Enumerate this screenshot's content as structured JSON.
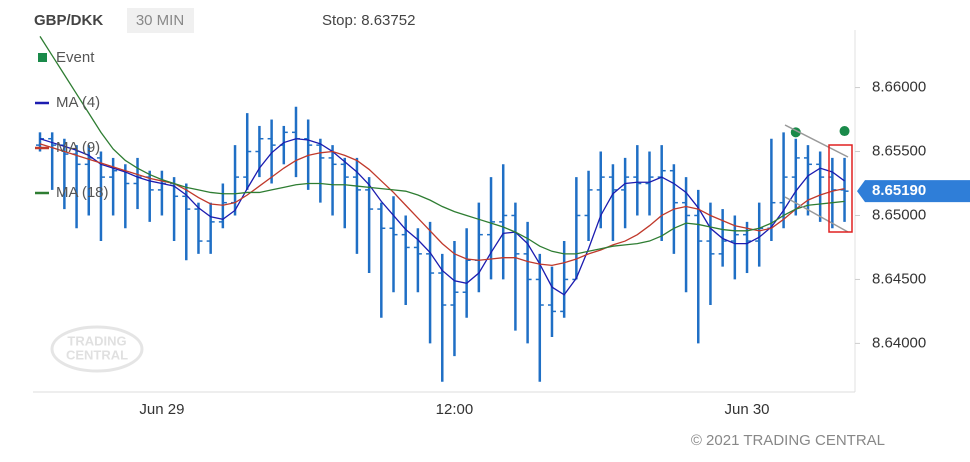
{
  "chart_data": {
    "type": "ohlc",
    "title": "GBP/DKK",
    "interval": "30 MIN",
    "stop_label": "Stop: 8.63752",
    "copyright": "© 2021 TRADING CENTRAL",
    "watermark": [
      "TRADING",
      "CENTRAL"
    ],
    "bar_color": "#1f6fc5",
    "categories": [
      null,
      null,
      null,
      null,
      null,
      null,
      null,
      null,
      null,
      null,
      "Jun 29",
      null,
      null,
      null,
      null,
      null,
      null,
      null,
      null,
      null,
      null,
      null,
      null,
      null,
      null,
      null,
      null,
      null,
      null,
      null,
      null,
      null,
      null,
      null,
      "12:00",
      null,
      null,
      null,
      null,
      null,
      null,
      null,
      null,
      null,
      null,
      null,
      null,
      null,
      null,
      null,
      null,
      null,
      null,
      null,
      null,
      null,
      null,
      null,
      "Jun 30",
      null,
      null,
      null,
      null,
      null,
      null,
      null,
      null
    ],
    "open": [
      8.6555,
      8.656,
      8.6555,
      8.6548,
      8.654,
      8.6545,
      8.653,
      8.6535,
      8.6525,
      8.653,
      8.652,
      8.6525,
      8.6515,
      8.6505,
      8.648,
      8.6495,
      8.651,
      8.653,
      8.655,
      8.656,
      8.6555,
      8.6565,
      8.656,
      8.6555,
      8.6545,
      8.654,
      8.653,
      8.652,
      8.6505,
      8.649,
      8.6485,
      8.6475,
      8.647,
      8.6455,
      8.643,
      8.644,
      8.6465,
      8.6485,
      8.6495,
      8.65,
      8.647,
      8.645,
      8.643,
      8.6425,
      8.645,
      8.65,
      8.652,
      8.653,
      8.652,
      8.653,
      8.6525,
      8.653,
      8.6535,
      8.651,
      8.65,
      8.648,
      8.647,
      8.648,
      8.6485,
      8.648,
      8.649,
      8.651,
      8.653,
      8.6545,
      8.654,
      8.653,
      8.652
    ],
    "high": [
      8.6565,
      8.6565,
      8.656,
      8.6555,
      8.6555,
      8.655,
      8.6545,
      8.654,
      8.6545,
      8.6535,
      8.6535,
      8.653,
      8.6525,
      8.651,
      8.651,
      8.6525,
      8.6555,
      8.658,
      8.657,
      8.6575,
      8.657,
      8.6585,
      8.6575,
      8.656,
      8.6555,
      8.6545,
      8.6545,
      8.653,
      8.651,
      8.6515,
      8.65,
      8.649,
      8.6495,
      8.647,
      8.648,
      8.649,
      8.651,
      8.653,
      8.654,
      8.651,
      8.6495,
      8.647,
      8.646,
      8.648,
      8.653,
      8.6535,
      8.655,
      8.654,
      8.6545,
      8.6555,
      8.655,
      8.6555,
      8.654,
      8.653,
      8.652,
      8.651,
      8.6505,
      8.65,
      8.6495,
      8.651,
      8.656,
      8.6565,
      8.656,
      8.6555,
      8.655,
      8.6545,
      8.6545
    ],
    "low": [
      8.655,
      8.652,
      8.6505,
      8.649,
      8.65,
      8.648,
      8.65,
      8.649,
      8.6505,
      8.6495,
      8.65,
      8.648,
      8.6465,
      8.647,
      8.647,
      8.649,
      8.65,
      8.652,
      8.653,
      8.6525,
      8.654,
      8.653,
      8.652,
      8.651,
      8.65,
      8.649,
      8.647,
      8.6455,
      8.642,
      8.644,
      8.643,
      8.644,
      8.64,
      8.637,
      8.639,
      8.642,
      8.644,
      8.645,
      8.645,
      8.641,
      8.64,
      8.637,
      8.6405,
      8.642,
      8.645,
      8.648,
      8.649,
      8.648,
      8.649,
      8.65,
      8.65,
      8.648,
      8.647,
      8.644,
      8.64,
      8.643,
      8.646,
      8.645,
      8.6455,
      8.646,
      8.648,
      8.649,
      8.65,
      8.65,
      8.6495,
      8.649,
      8.6495
    ],
    "close": [
      8.656,
      8.6555,
      8.6548,
      8.654,
      8.6545,
      8.653,
      8.6535,
      8.6525,
      8.653,
      8.652,
      8.6525,
      8.6515,
      8.6505,
      8.648,
      8.6495,
      8.651,
      8.653,
      8.655,
      8.656,
      8.6555,
      8.6565,
      8.656,
      8.6555,
      8.6545,
      8.654,
      8.653,
      8.652,
      8.6505,
      8.649,
      8.6485,
      8.6475,
      8.647,
      8.6455,
      8.643,
      8.644,
      8.6465,
      8.6485,
      8.6495,
      8.65,
      8.647,
      8.645,
      8.643,
      8.6425,
      8.645,
      8.65,
      8.652,
      8.653,
      8.652,
      8.653,
      8.6525,
      8.653,
      8.6535,
      8.651,
      8.65,
      8.648,
      8.647,
      8.648,
      8.6485,
      8.648,
      8.649,
      8.651,
      8.653,
      8.6545,
      8.654,
      8.653,
      8.652,
      8.6519
    ],
    "series": [
      {
        "name": "Event",
        "type": "scatter",
        "color": "#1a8a4a",
        "values": [
          null,
          null,
          null,
          null,
          null,
          null,
          null,
          null,
          null,
          null,
          null,
          null,
          null,
          null,
          null,
          null,
          null,
          null,
          null,
          null,
          null,
          null,
          null,
          null,
          null,
          null,
          null,
          null,
          null,
          null,
          null,
          null,
          null,
          null,
          null,
          null,
          null,
          null,
          null,
          null,
          null,
          null,
          null,
          null,
          null,
          null,
          null,
          null,
          null,
          null,
          null,
          null,
          null,
          null,
          null,
          null,
          null,
          null,
          null,
          null,
          null,
          null,
          8.6565,
          null,
          null,
          null,
          8.6566
        ]
      },
      {
        "name": "MA (4)",
        "type": "line",
        "color": "#1c1cb0",
        "values": [
          8.656,
          8.6557,
          8.6554,
          8.6551,
          8.6547,
          8.654,
          8.6537,
          8.6534,
          8.653,
          8.6527,
          8.6525,
          8.6523,
          8.6516,
          8.6506,
          8.6499,
          8.6497,
          8.6504,
          8.6521,
          8.6537,
          8.6549,
          8.6557,
          8.656,
          8.6559,
          8.6556,
          8.655,
          8.6542,
          8.6534,
          8.6524,
          8.6511,
          8.65,
          8.6489,
          8.6481,
          8.6471,
          8.6457,
          8.6449,
          8.6447,
          8.6455,
          8.6471,
          8.6486,
          8.6487,
          8.6478,
          8.6462,
          8.6444,
          8.6438,
          8.6451,
          8.6474,
          8.65,
          8.6517,
          8.6525,
          8.6526,
          8.6526,
          8.653,
          8.6525,
          8.6518,
          8.6506,
          8.649,
          8.6482,
          8.6478,
          8.6478,
          8.6483,
          8.6491,
          8.6504,
          8.6519,
          8.6531,
          8.6537,
          8.6534,
          8.6527
        ]
      },
      {
        "name": "MA (9)",
        "type": "line",
        "color": "#c0392b",
        "values": [
          8.6556,
          8.6553,
          8.655,
          8.6547,
          8.6544,
          8.6541,
          8.6538,
          8.6535,
          8.6532,
          8.6529,
          8.6527,
          8.6525,
          8.652,
          8.6514,
          8.6509,
          8.6508,
          8.651,
          8.6516,
          8.6523,
          8.653,
          8.6537,
          8.6543,
          8.6547,
          8.6549,
          8.655,
          8.6547,
          8.6543,
          8.6536,
          8.6527,
          8.6518,
          8.6508,
          8.6498,
          8.6488,
          8.6478,
          8.647,
          8.6466,
          8.6465,
          8.6466,
          8.6467,
          8.6467,
          8.6464,
          8.6462,
          8.6461,
          8.6463,
          8.6466,
          8.647,
          8.6473,
          8.6477,
          8.648,
          8.6485,
          8.6492,
          8.65,
          8.6505,
          8.6507,
          8.6505,
          8.65,
          8.6496,
          8.6492,
          8.649,
          8.6488,
          8.649,
          8.6497,
          8.6505,
          8.6512,
          8.6516,
          8.6519,
          8.6521
        ]
      },
      {
        "name": "MA (18)",
        "type": "line",
        "color": "#2e7d32",
        "values": [
          8.664,
          8.6625,
          8.661,
          8.6595,
          8.658,
          8.6565,
          8.6552,
          8.6543,
          8.6537,
          8.6532,
          8.6528,
          8.6525,
          8.6522,
          8.652,
          8.6518,
          8.6517,
          8.6517,
          8.6518,
          8.6518,
          8.652,
          8.6522,
          8.6524,
          8.6525,
          8.6525,
          8.6524,
          8.6524,
          8.6523,
          8.6522,
          8.6521,
          8.652,
          8.6519,
          8.6516,
          8.6512,
          8.6507,
          8.6503,
          8.65,
          8.6497,
          8.6494,
          8.6491,
          8.6487,
          8.6482,
          8.6476,
          8.6472,
          8.647,
          8.647,
          8.6472,
          8.6474,
          8.6476,
          8.6477,
          8.6478,
          8.648,
          8.6484,
          8.649,
          8.6494,
          8.6493,
          8.6491,
          8.6489,
          8.6488,
          8.6488,
          8.649,
          8.6494,
          8.65,
          8.6505,
          8.6508,
          8.6509,
          8.651,
          8.6511
        ]
      }
    ],
    "last": {
      "value": 8.6519,
      "label": "8.65190",
      "color": "#2f7ed8"
    },
    "ylim": [
      8.6362,
      8.6645
    ],
    "yticks": [
      {
        "value": 8.64,
        "label": "8.64000"
      },
      {
        "value": 8.645,
        "label": "8.64500"
      },
      {
        "value": 8.65,
        "label": "8.65000"
      },
      {
        "value": 8.655,
        "label": "8.65500"
      },
      {
        "value": 8.66,
        "label": "8.66000"
      }
    ],
    "legend": "top-left"
  }
}
